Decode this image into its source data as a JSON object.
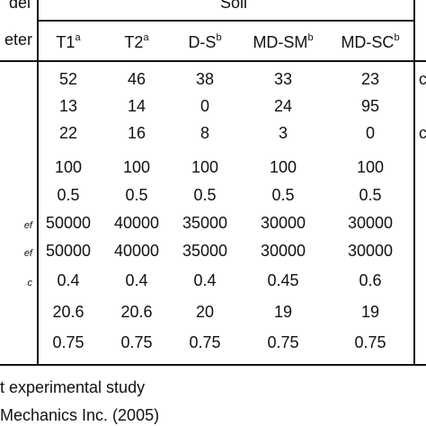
{
  "header": {
    "group_label": "Soil",
    "left_top": "del",
    "left_bottom": "eter",
    "columns": [
      {
        "name": "T1",
        "sup": "a"
      },
      {
        "name": "T2",
        "sup": "a"
      },
      {
        "name": "D-S",
        "sup": "b"
      },
      {
        "name": "MD-SM",
        "sup": "b"
      },
      {
        "name": "MD-SC",
        "sup": "b"
      }
    ]
  },
  "rows": [
    {
      "param": "",
      "values": [
        "52",
        "46",
        "38",
        "33",
        "23"
      ],
      "right": "c"
    },
    {
      "param": "",
      "values": [
        "13",
        "14",
        "0",
        "24",
        "95"
      ],
      "right": ""
    },
    {
      "param": "",
      "values": [
        "22",
        "16",
        "8",
        "3",
        "0"
      ],
      "right": "c"
    },
    {
      "param": "",
      "values": [
        "100",
        "100",
        "100",
        "100",
        "100"
      ],
      "right": ""
    },
    {
      "param": "",
      "values": [
        "0.5",
        "0.5",
        "0.5",
        "0.5",
        "0.5"
      ],
      "right": ""
    },
    {
      "param": "ef",
      "values": [
        "50000",
        "40000",
        "35000",
        "30000",
        "30000"
      ],
      "right": ""
    },
    {
      "param": "ef",
      "values": [
        "50000",
        "40000",
        "35000",
        "30000",
        "30000"
      ],
      "right": ""
    },
    {
      "param": "c",
      "values": [
        "0.4",
        "0.4",
        "0.4",
        "0.45",
        "0.6"
      ],
      "right": ""
    },
    {
      "param": "",
      "values": [
        "20.6",
        "20.6",
        "20",
        "19",
        "19"
      ],
      "right": ""
    },
    {
      "param": "",
      "values": [
        "0.75",
        "0.75",
        "0.75",
        "0.75",
        "0.75"
      ],
      "right": ""
    }
  ],
  "footnotes": [
    "t experimental study",
    "Mechanics Inc. (2005)"
  ]
}
